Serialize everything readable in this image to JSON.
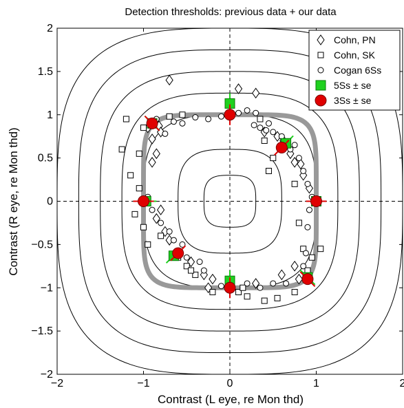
{
  "chart_data": {
    "type": "scatter",
    "title": "Detection thresholds: previous data + our data",
    "xlabel": "Contrast (L eye, re Mon thd)",
    "ylabel": "Contrast (R eye, re Mon thd)",
    "xlim": [
      -2,
      2
    ],
    "ylim": [
      -2,
      2
    ],
    "xticks": [
      "−2",
      "−1",
      "0",
      "1",
      "2"
    ],
    "yticks": [
      "−2",
      "−1.5",
      "−1",
      "−0.5",
      "0",
      "0.5",
      "1",
      "1.5",
      "2"
    ],
    "grid": false,
    "legend_position": "top-right",
    "reference_lines": {
      "x": 0,
      "y": 0,
      "style": "dashed"
    },
    "contour_levels": [
      0.3,
      0.6,
      1.0,
      1.25,
      1.5,
      1.75,
      2.0
    ],
    "fit_curve": {
      "level": 1.0,
      "color": "#999999"
    },
    "series": [
      {
        "name": "Cohn, PN",
        "marker": "diamond",
        "points": [
          [
            -0.95,
            0.85
          ],
          [
            -0.82,
            0.87
          ],
          [
            -0.9,
            0.72
          ],
          [
            -0.85,
            0.55
          ],
          [
            -0.9,
            0.45
          ],
          [
            -0.8,
            0.8
          ],
          [
            -0.7,
            1.4
          ],
          [
            0.3,
            1.25
          ],
          [
            0.55,
            0.75
          ],
          [
            0.62,
            0.7
          ],
          [
            0.7,
            0.55
          ],
          [
            0.75,
            0.45
          ],
          [
            0.82,
            0.43
          ],
          [
            0.85,
            0.3
          ],
          [
            0.92,
            0.15
          ],
          [
            0.4,
            0.8
          ],
          [
            0.1,
            1.3
          ],
          [
            -0.8,
            -0.1
          ],
          [
            -0.85,
            -0.2
          ],
          [
            -0.75,
            -0.35
          ],
          [
            -0.7,
            -0.45
          ],
          [
            -0.6,
            -0.6
          ],
          [
            -0.45,
            -0.7
          ],
          [
            -0.3,
            -0.85
          ],
          [
            -0.2,
            -0.9
          ],
          [
            -0.25,
            -1.0
          ],
          [
            0.3,
            -0.95
          ],
          [
            0.6,
            -0.85
          ],
          [
            0.75,
            -0.75
          ],
          [
            0.8,
            -0.9
          ]
        ]
      },
      {
        "name": "Cohn, SK",
        "marker": "square",
        "points": [
          [
            -1.25,
            0.6
          ],
          [
            -1.2,
            0.95
          ],
          [
            -1.15,
            0.3
          ],
          [
            -1.1,
            -0.15
          ],
          [
            -1.05,
            0.15
          ],
          [
            -1.05,
            0.55
          ],
          [
            -1.0,
            0.85
          ],
          [
            -0.7,
            0.98
          ],
          [
            -0.55,
            1.0
          ],
          [
            0.35,
            0.95
          ],
          [
            0.4,
            0.7
          ],
          [
            0.5,
            0.5
          ],
          [
            0.45,
            0.35
          ],
          [
            0.6,
            0.6
          ],
          [
            0.75,
            0.2
          ],
          [
            0.8,
            -0.25
          ],
          [
            0.85,
            -0.55
          ],
          [
            0.9,
            -0.8
          ],
          [
            0.75,
            -1.05
          ],
          [
            0.55,
            -1.12
          ],
          [
            0.4,
            -1.15
          ],
          [
            0.2,
            -1.1
          ],
          [
            0.1,
            -1.05
          ],
          [
            -0.2,
            -1.05
          ],
          [
            -0.4,
            -0.85
          ],
          [
            -0.5,
            -0.75
          ],
          [
            -0.6,
            -0.65
          ],
          [
            -0.8,
            -0.4
          ],
          [
            -0.95,
            -0.5
          ],
          [
            -1.0,
            -0.3
          ],
          [
            -0.45,
            -0.8
          ],
          [
            0.15,
            -1.0
          ],
          [
            0.95,
            -0.65
          ],
          [
            1.05,
            -0.55
          ]
        ]
      },
      {
        "name": "Cogan 6Ss",
        "marker": "circle",
        "points": [
          [
            -0.85,
            0.95
          ],
          [
            -0.75,
            0.78
          ],
          [
            -0.65,
            0.92
          ],
          [
            -0.55,
            0.9
          ],
          [
            -0.4,
            0.97
          ],
          [
            -0.25,
            0.95
          ],
          [
            -0.1,
            0.98
          ],
          [
            0.1,
            1.02
          ],
          [
            0.2,
            1.05
          ],
          [
            0.3,
            1.02
          ],
          [
            0.35,
            0.85
          ],
          [
            0.45,
            0.9
          ],
          [
            0.5,
            0.8
          ],
          [
            0.6,
            0.75
          ],
          [
            0.7,
            0.6
          ],
          [
            0.75,
            0.65
          ],
          [
            0.8,
            0.5
          ],
          [
            0.85,
            0.35
          ],
          [
            0.9,
            0.2
          ],
          [
            0.95,
            0.05
          ],
          [
            0.92,
            -0.1
          ],
          [
            0.9,
            -0.3
          ],
          [
            0.88,
            -0.6
          ],
          [
            0.85,
            -0.75
          ],
          [
            0.65,
            -0.95
          ],
          [
            0.5,
            -0.95
          ],
          [
            0.35,
            -1.0
          ],
          [
            0.2,
            -0.95
          ],
          [
            -0.1,
            -0.98
          ],
          [
            -0.3,
            -0.8
          ],
          [
            -0.35,
            -0.7
          ],
          [
            -0.5,
            -0.65
          ],
          [
            -0.55,
            -0.5
          ],
          [
            -0.65,
            -0.45
          ],
          [
            -0.7,
            -0.35
          ],
          [
            -0.8,
            -0.25
          ],
          [
            -0.9,
            -0.1
          ],
          [
            -0.95,
            0.05
          ],
          [
            0.28,
            0.88
          ],
          [
            0.42,
            0.82
          ]
        ]
      },
      {
        "name": "5Ss ± se",
        "marker": "filled-square",
        "color": "#1fd11f",
        "points": [
          [
            0.0,
            1.13
          ],
          [
            0.65,
            0.67
          ],
          [
            1.0,
            0.0
          ],
          [
            0.0,
            -0.92
          ],
          [
            -0.65,
            -0.63
          ],
          [
            -0.97,
            0.0
          ],
          [
            0.9,
            -0.88
          ],
          [
            -0.9,
            0.9
          ]
        ]
      },
      {
        "name": "3Ss ± se",
        "marker": "filled-circle",
        "color": "#e00000",
        "points": [
          [
            0.0,
            1.0
          ],
          [
            0.6,
            0.62
          ],
          [
            1.0,
            0.0
          ],
          [
            0.9,
            -0.9
          ],
          [
            0.0,
            -1.0
          ],
          [
            -0.6,
            -0.6
          ],
          [
            -1.0,
            0.0
          ],
          [
            -0.9,
            0.9
          ]
        ]
      }
    ]
  }
}
